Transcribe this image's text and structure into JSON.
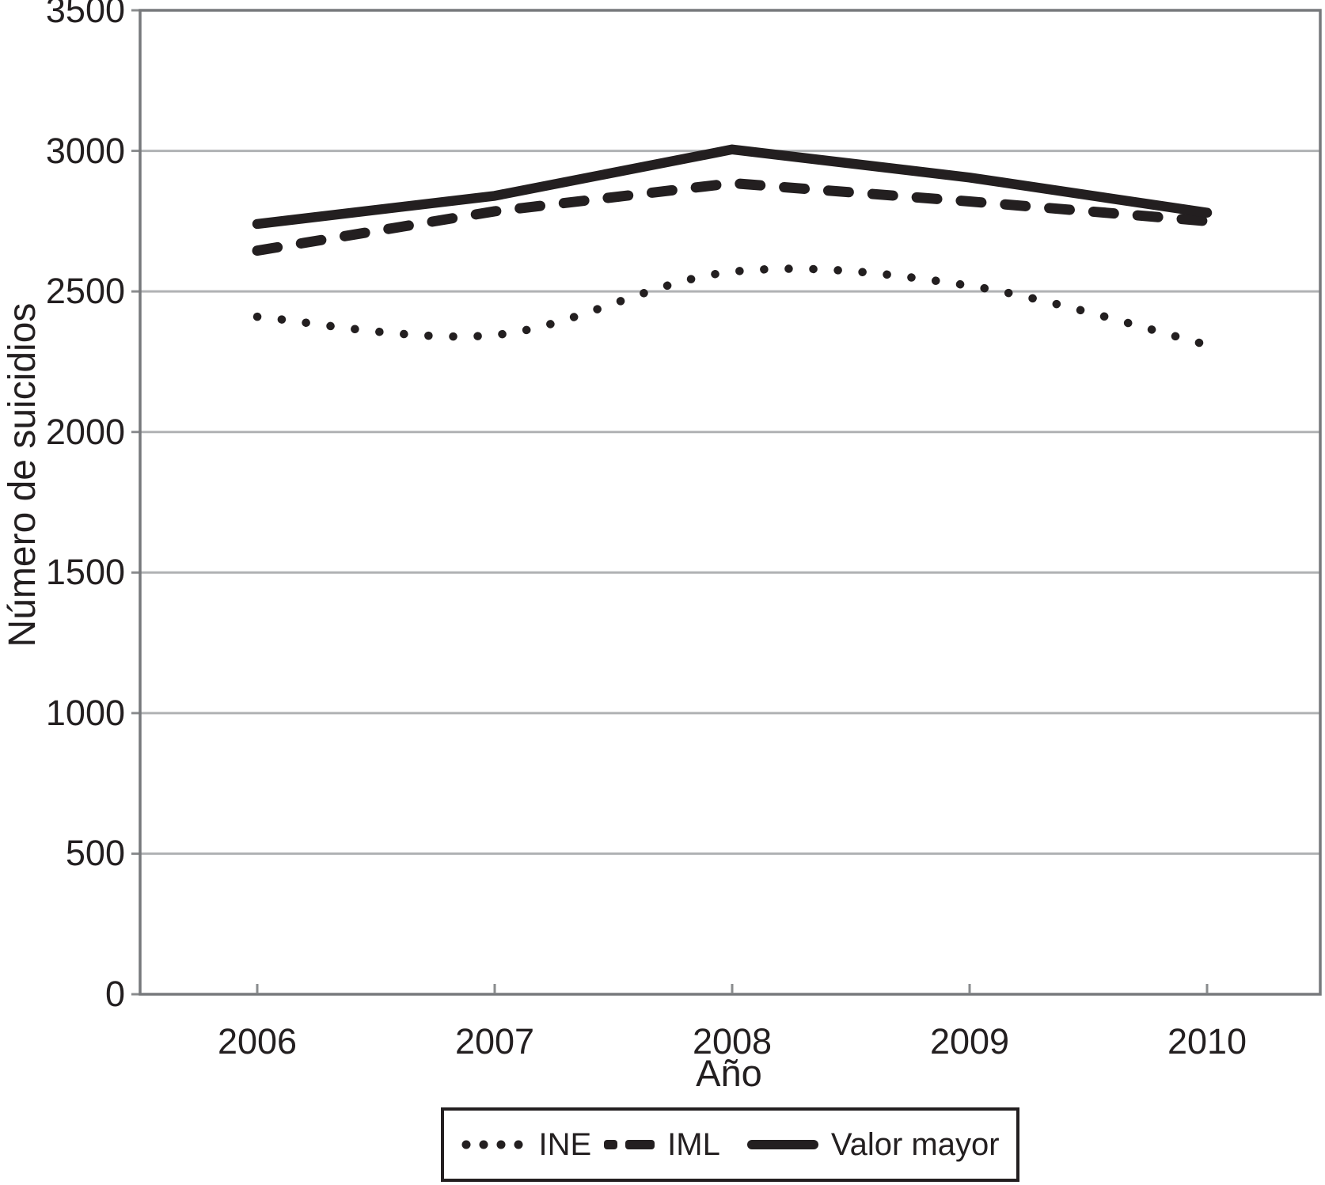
{
  "axes": {
    "y": {
      "title": "Número de suicidios",
      "ticks": [
        "3500",
        "3000",
        "2500",
        "2000",
        "1500",
        "1000",
        "500",
        "0"
      ]
    },
    "x": {
      "title": "Año",
      "ticks": [
        "2006",
        "2007",
        "2008",
        "2009",
        "2010"
      ]
    }
  },
  "legend": {
    "items": [
      {
        "label": "INE",
        "style": "dotted"
      },
      {
        "label": "IML",
        "style": "dashed"
      },
      {
        "label": "Valor mayor",
        "style": "solid"
      }
    ]
  },
  "colors": {
    "line": "#231f20",
    "grid": "#b0b2b4",
    "border": "#77797c",
    "tick": "#8a8c8e",
    "text": "#231f20",
    "background": "#ffffff"
  },
  "chart_data": {
    "type": "line",
    "title": "",
    "xlabel": "Año",
    "ylabel": "Número de suicidios",
    "x": [
      2006,
      2007,
      2008,
      2009,
      2010
    ],
    "series": [
      {
        "name": "INE",
        "style": "dotted",
        "values": [
          2410,
          2345,
          2570,
          2520,
          2310
        ]
      },
      {
        "name": "IML",
        "style": "dashed",
        "values": [
          2645,
          2785,
          2885,
          2820,
          2750
        ]
      },
      {
        "name": "Valor mayor",
        "style": "solid",
        "values": [
          2740,
          2840,
          3005,
          2905,
          2780
        ]
      }
    ],
    "ylim": [
      0,
      3500
    ],
    "ytick_step": 500,
    "grid": true,
    "legend_position": "bottom"
  }
}
